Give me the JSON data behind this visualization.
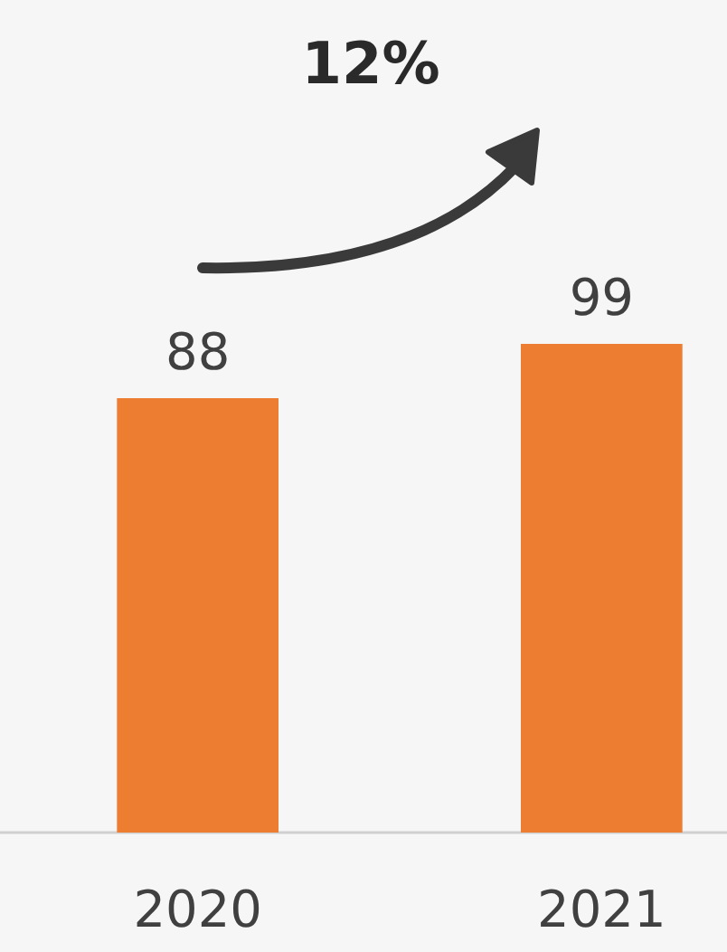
{
  "chart_data": {
    "type": "bar",
    "categories": [
      "2020",
      "2021"
    ],
    "values": [
      88,
      99
    ],
    "color": "#ed7d31",
    "data_labels": true,
    "annotations": [
      "12%"
    ]
  }
}
